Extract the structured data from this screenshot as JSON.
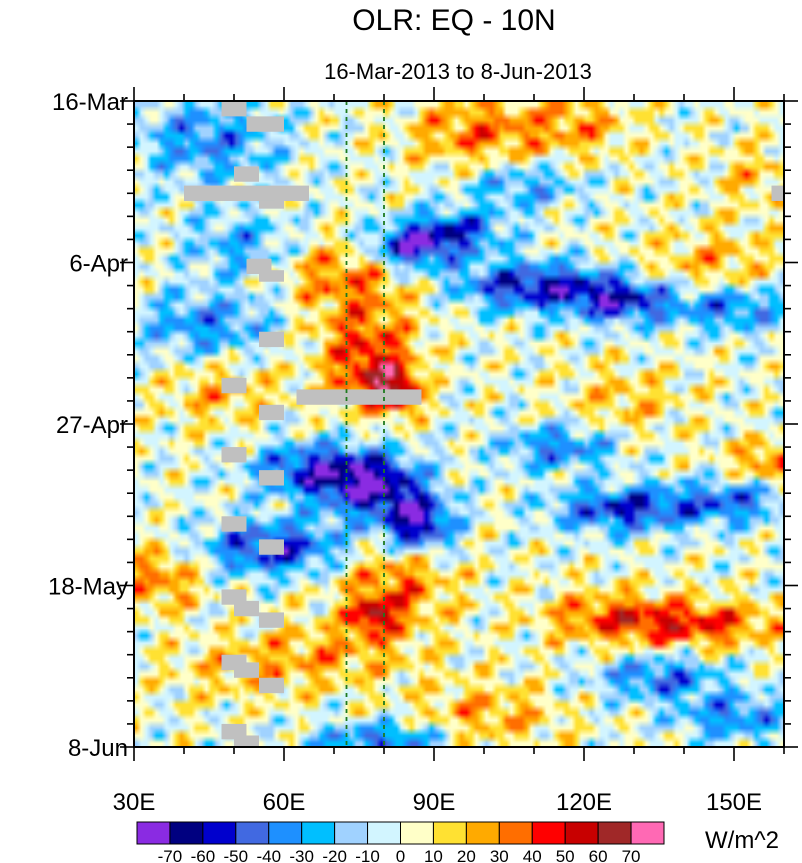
{
  "chart_data": {
    "type": "heatmap",
    "title": "OLR: EQ - 10N",
    "subtitle": "16-Mar-2013 to 8-Jun-2013",
    "x_axis": {
      "range_deg_east": [
        30,
        160
      ],
      "ticks": [
        {
          "value": 30,
          "label": "30E"
        },
        {
          "value": 60,
          "label": "60E"
        },
        {
          "value": 90,
          "label": "90E"
        },
        {
          "value": 120,
          "label": "120E"
        },
        {
          "value": 150,
          "label": "150E"
        }
      ]
    },
    "y_axis": {
      "range_days_since_16mar": [
        0,
        84
      ],
      "direction": "time increases downward",
      "ticks": [
        {
          "value": 0,
          "label": "16-Mar"
        },
        {
          "value": 21,
          "label": "6-Apr"
        },
        {
          "value": 42,
          "label": "27-Apr"
        },
        {
          "value": 63,
          "label": "18-May"
        },
        {
          "value": 84,
          "label": "8-Jun"
        }
      ]
    },
    "reference_lines_deg_east": [
      72.5,
      80
    ],
    "colorbar": {
      "unit_label": "W/m^2",
      "levels": [
        -70,
        -60,
        -50,
        -40,
        -30,
        -20,
        -10,
        0,
        10,
        20,
        30,
        40,
        50,
        60,
        70
      ],
      "level_labels": [
        "-70",
        "-60",
        "-50",
        "-40",
        "-30",
        "-20",
        "-10",
        "0",
        "10",
        "20",
        "30",
        "40",
        "50",
        "60",
        "70"
      ],
      "colors": [
        "#8a2be2",
        "#000080",
        "#0000cd",
        "#4169e1",
        "#1e90ff",
        "#00bfff",
        "#a0d2ff",
        "#d2f5ff",
        "#ffffc8",
        "#ffe132",
        "#ffaa00",
        "#ff6e00",
        "#ff0000",
        "#c80000",
        "#a02828",
        "#ff69b4"
      ]
    },
    "missing_color": "#c0c0c0",
    "anomaly_features": [
      {
        "lon": 85,
        "day": 19,
        "value": -62,
        "sx": 6,
        "sy": 2
      },
      {
        "lon": 95,
        "day": 17,
        "value": -45,
        "sx": 7,
        "sy": 2
      },
      {
        "lon": 110,
        "day": 24,
        "value": -58,
        "sx": 11,
        "sy": 2.2
      },
      {
        "lon": 128,
        "day": 26,
        "value": -52,
        "sx": 8,
        "sy": 2
      },
      {
        "lon": 150,
        "day": 27,
        "value": -40,
        "sx": 8,
        "sy": 2
      },
      {
        "lon": 65,
        "day": 48,
        "value": -50,
        "sx": 8,
        "sy": 2.5
      },
      {
        "lon": 78,
        "day": 50,
        "value": -68,
        "sx": 7,
        "sy": 3
      },
      {
        "lon": 87,
        "day": 55,
        "value": -66,
        "sx": 5,
        "sy": 2.5
      },
      {
        "lon": 58,
        "day": 58,
        "value": -55,
        "sx": 10,
        "sy": 2.5
      },
      {
        "lon": 128,
        "day": 53,
        "value": -55,
        "sx": 10,
        "sy": 2
      },
      {
        "lon": 150,
        "day": 52,
        "value": -40,
        "sx": 8,
        "sy": 2
      },
      {
        "lon": 45,
        "day": 5,
        "value": -35,
        "sx": 10,
        "sy": 4
      },
      {
        "lon": 52,
        "day": 19,
        "value": -30,
        "sx": 8,
        "sy": 3
      },
      {
        "lon": 98,
        "day": 4,
        "value": 32,
        "sx": 9,
        "sy": 3
      },
      {
        "lon": 118,
        "day": 3,
        "value": 25,
        "sx": 8,
        "sy": 3
      },
      {
        "lon": 76,
        "day": 30,
        "value": 32,
        "sx": 8,
        "sy": 5
      },
      {
        "lon": 78,
        "day": 36,
        "value": 38,
        "sx": 5,
        "sy": 3
      },
      {
        "lon": 83,
        "day": 38,
        "value": 45,
        "sx": 3,
        "sy": 2
      },
      {
        "lon": 70,
        "day": 22,
        "value": 25,
        "sx": 10,
        "sy": 3
      },
      {
        "lon": 82,
        "day": 63,
        "value": 35,
        "sx": 8,
        "sy": 4
      },
      {
        "lon": 78,
        "day": 67,
        "value": 45,
        "sx": 3,
        "sy": 1.5
      },
      {
        "lon": 35,
        "day": 62,
        "value": 32,
        "sx": 6,
        "sy": 3
      },
      {
        "lon": 143,
        "day": 68,
        "value": 42,
        "sx": 12,
        "sy": 2
      },
      {
        "lon": 125,
        "day": 67,
        "value": 30,
        "sx": 10,
        "sy": 2.5
      },
      {
        "lon": 157,
        "day": 47,
        "value": 32,
        "sx": 6,
        "sy": 2
      },
      {
        "lon": 145,
        "day": 21,
        "value": 22,
        "sx": 10,
        "sy": 3
      },
      {
        "lon": 155,
        "day": 10,
        "value": 18,
        "sx": 6,
        "sy": 3
      },
      {
        "lon": 128,
        "day": 39,
        "value": 20,
        "sx": 8,
        "sy": 3
      },
      {
        "lon": 100,
        "day": 80,
        "value": 25,
        "sx": 10,
        "sy": 3
      },
      {
        "lon": 70,
        "day": 72,
        "value": 22,
        "sx": 12,
        "sy": 3
      },
      {
        "lon": 50,
        "day": 74,
        "value": 15,
        "sx": 10,
        "sy": 3
      },
      {
        "lon": 48,
        "day": 38,
        "value": 22,
        "sx": 8,
        "sy": 3
      },
      {
        "lon": 45,
        "day": 29,
        "value": -35,
        "sx": 10,
        "sy": 3
      },
      {
        "lon": 80,
        "day": 83,
        "value": -42,
        "sx": 10,
        "sy": 1.5
      },
      {
        "lon": 135,
        "day": 75,
        "value": -40,
        "sx": 9,
        "sy": 2
      },
      {
        "lon": 150,
        "day": 80,
        "value": -38,
        "sx": 8,
        "sy": 2
      },
      {
        "lon": 115,
        "day": 45,
        "value": -40,
        "sx": 8,
        "sy": 2
      },
      {
        "lon": 108,
        "day": 11,
        "value": -30,
        "sx": 8,
        "sy": 2
      }
    ],
    "missing_data_boxes": [
      {
        "lon": [
          47.5,
          52.5
        ],
        "day": [
          0,
          2
        ]
      },
      {
        "lon": [
          52.5,
          60
        ],
        "day": [
          2,
          4
        ]
      },
      {
        "lon": [
          50,
          55
        ],
        "day": [
          8.5,
          10.5
        ]
      },
      {
        "lon": [
          40,
          65
        ],
        "day": [
          11,
          13
        ]
      },
      {
        "lon": [
          55,
          60
        ],
        "day": [
          13,
          14
        ]
      },
      {
        "lon": [
          52.5,
          57.5
        ],
        "day": [
          20.5,
          22.5
        ]
      },
      {
        "lon": [
          55,
          60
        ],
        "day": [
          22,
          23.5
        ]
      },
      {
        "lon": [
          55,
          60
        ],
        "day": [
          30,
          32
        ]
      },
      {
        "lon": [
          47.5,
          52.5
        ],
        "day": [
          36,
          38
        ]
      },
      {
        "lon": [
          62.5,
          87.5
        ],
        "day": [
          37.5,
          39.5
        ]
      },
      {
        "lon": [
          55,
          60
        ],
        "day": [
          39.5,
          41.5
        ]
      },
      {
        "lon": [
          47.5,
          52.5
        ],
        "day": [
          45,
          47
        ]
      },
      {
        "lon": [
          55,
          60
        ],
        "day": [
          48,
          50
        ]
      },
      {
        "lon": [
          47.5,
          52.5
        ],
        "day": [
          54,
          56
        ]
      },
      {
        "lon": [
          55,
          60
        ],
        "day": [
          57,
          59
        ]
      },
      {
        "lon": [
          47.5,
          52.5
        ],
        "day": [
          63.5,
          65.5
        ]
      },
      {
        "lon": [
          50,
          55
        ],
        "day": [
          65,
          67
        ]
      },
      {
        "lon": [
          55,
          60
        ],
        "day": [
          66.5,
          68.5
        ]
      },
      {
        "lon": [
          47.5,
          52.5
        ],
        "day": [
          72,
          74
        ]
      },
      {
        "lon": [
          50,
          55
        ],
        "day": [
          73,
          75
        ]
      },
      {
        "lon": [
          55,
          60
        ],
        "day": [
          75,
          77
        ]
      },
      {
        "lon": [
          47.5,
          52.5
        ],
        "day": [
          81,
          83
        ]
      },
      {
        "lon": [
          50,
          55
        ],
        "day": [
          82.5,
          84
        ]
      },
      {
        "lon": [
          157.5,
          160
        ],
        "day": [
          11,
          13
        ]
      }
    ]
  }
}
